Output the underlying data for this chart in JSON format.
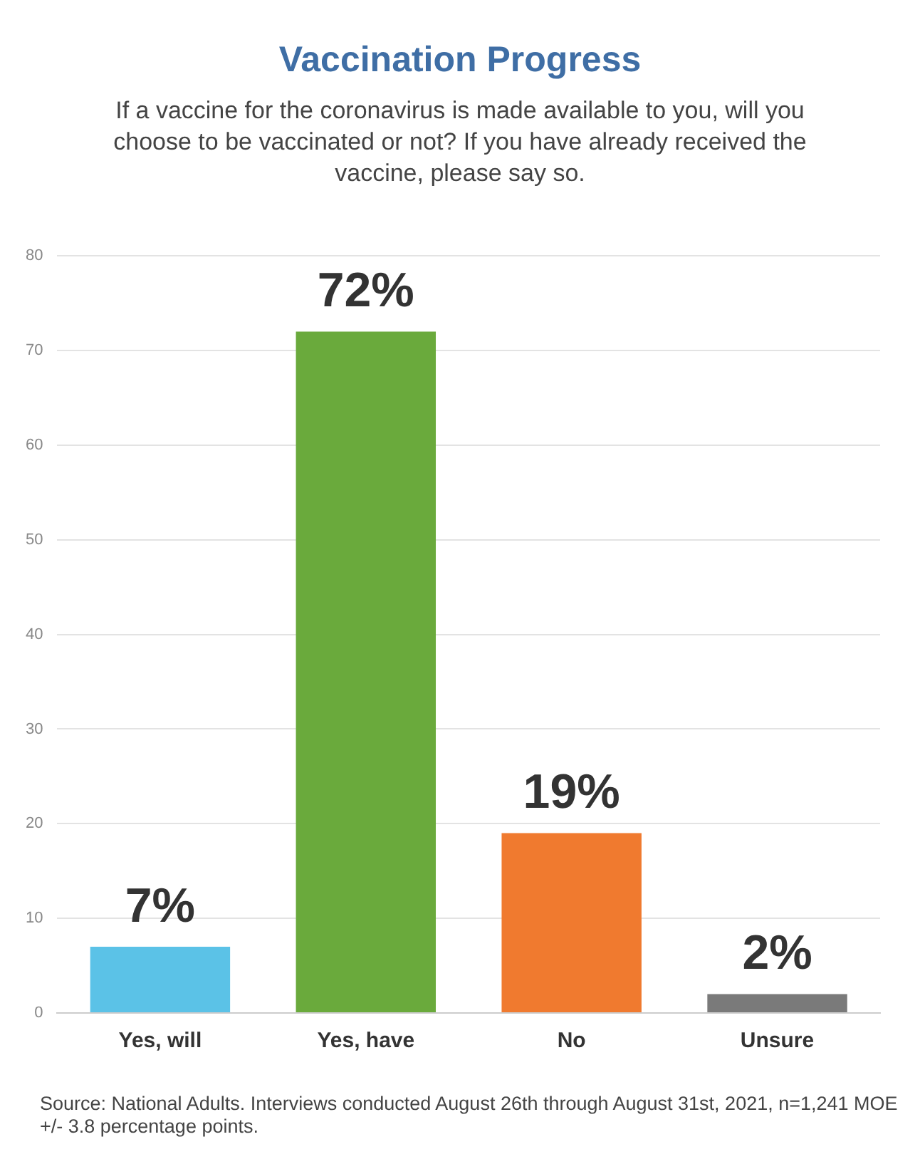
{
  "chart_data": {
    "type": "bar",
    "title": "Vaccination Progress",
    "subtitle": "If a vaccine for the coronavirus is made available to you, will you choose to be vaccinated or not? If you have already received the vaccine, please say so.",
    "categories": [
      "Yes, will",
      "Yes, have",
      "No",
      "Unsure"
    ],
    "values": [
      7,
      72,
      19,
      2
    ],
    "colors": [
      "#5bc2e7",
      "#6aaa3c",
      "#f07a2f",
      "#7a7a7a"
    ],
    "value_labels": [
      "7%",
      "72%",
      "19%",
      "2%"
    ],
    "ylim": [
      0,
      80
    ],
    "yticks": [
      0,
      10,
      20,
      30,
      40,
      50,
      60,
      70,
      80
    ],
    "grid": "y",
    "legend": false,
    "annotations": [
      "Source: National Adults. Interviews conducted August 26th through August 31st, 2021, n=1,241 MOE +/- 3.8 percentage points."
    ]
  }
}
